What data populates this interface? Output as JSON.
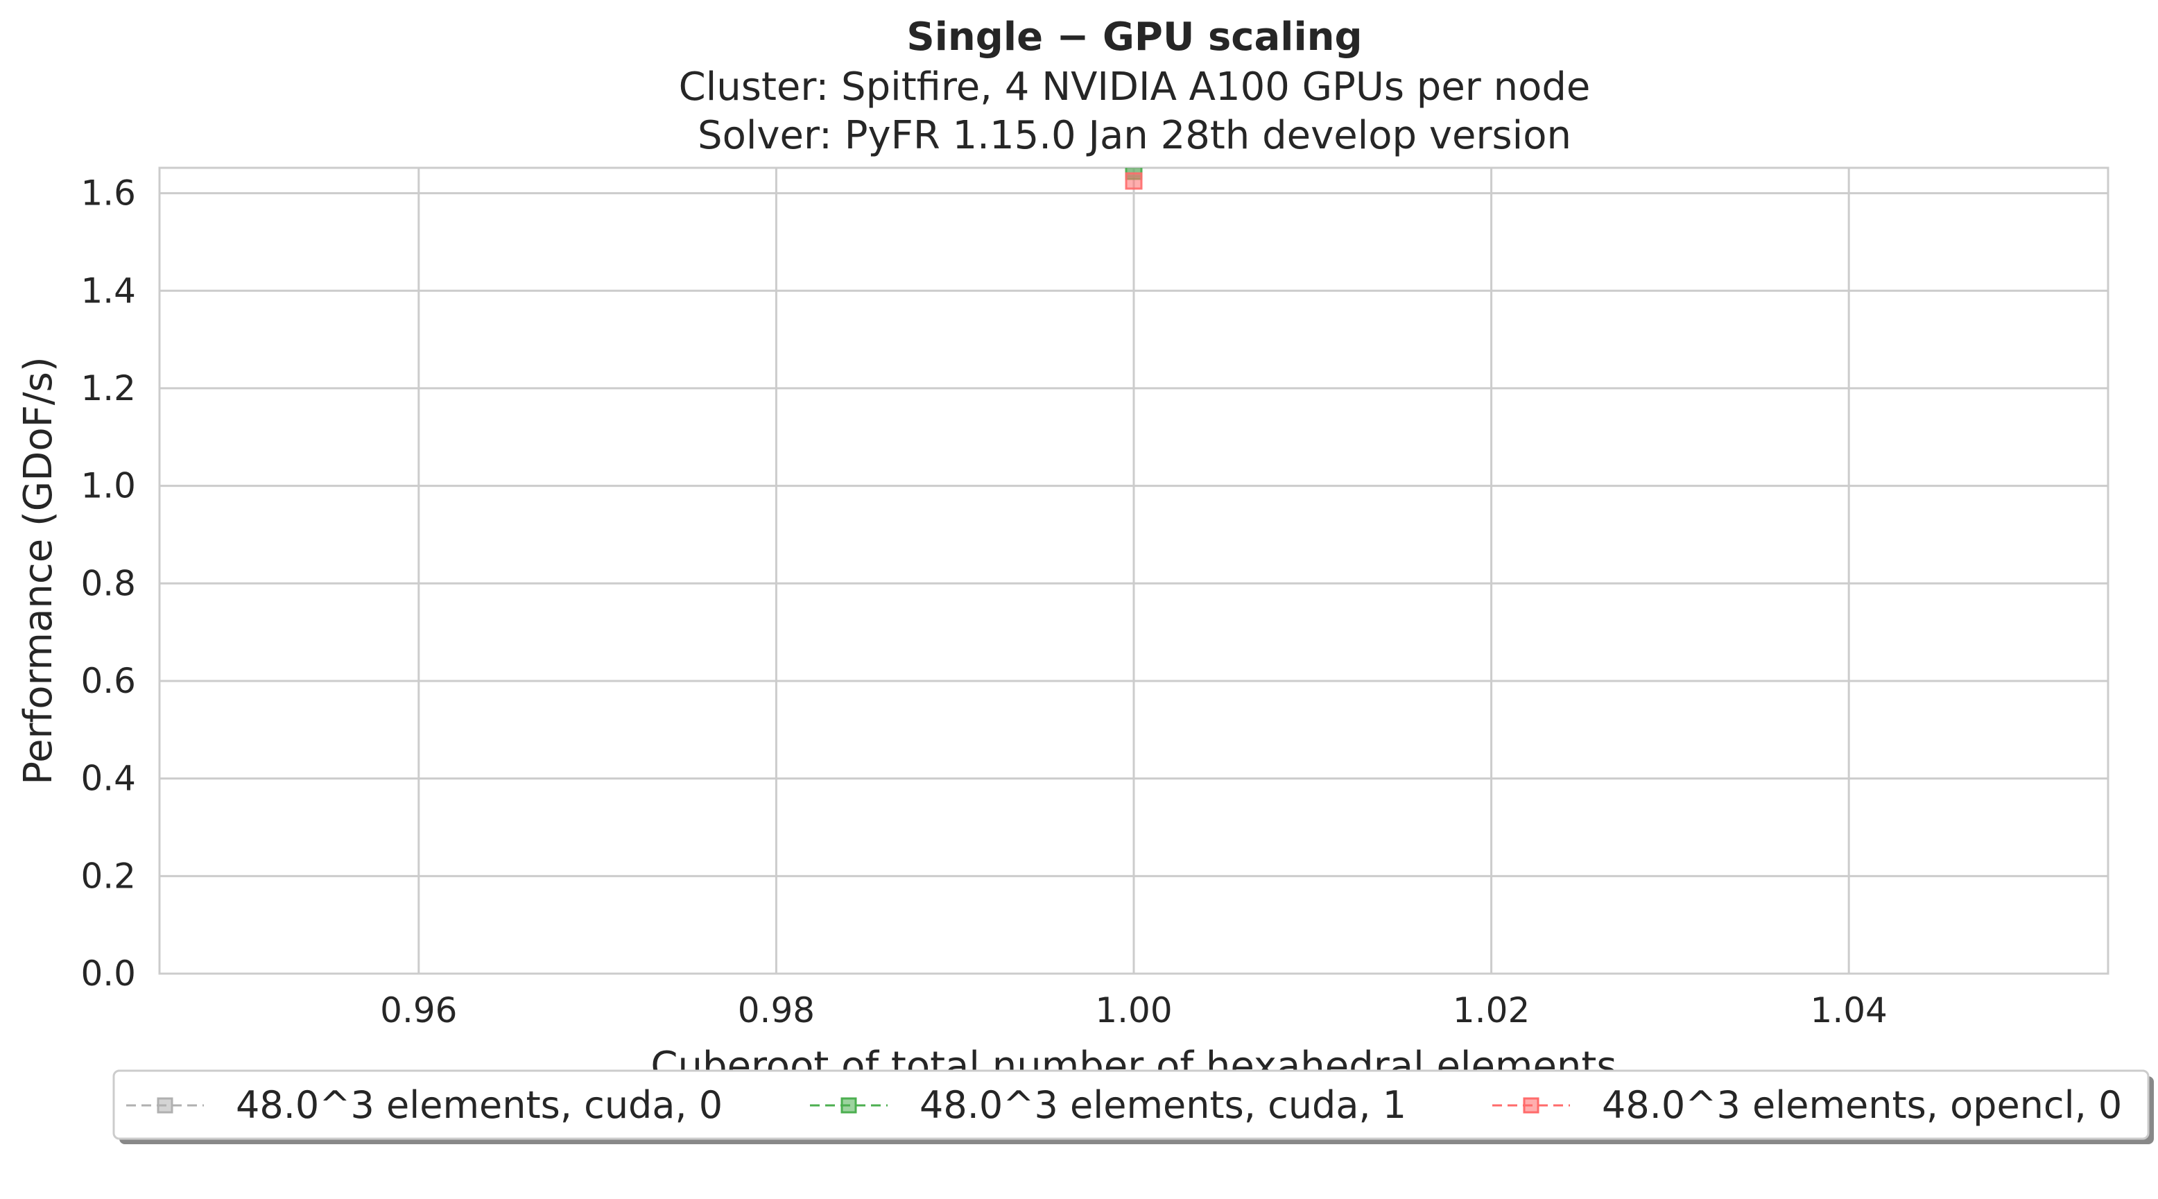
{
  "chart_data": {
    "type": "line",
    "title_bold": "Single − GPU scaling",
    "subtitle_line1": "Cluster: Spitfire, 4 NVIDIA A100 GPUs per node",
    "subtitle_line2": "Solver: PyFR 1.15.0 Jan 28th develop version",
    "xlabel": "Cuberoot of total number of hexahedral elements",
    "ylabel": "Performance (GDoF/s)",
    "xlim": [
      0.9455,
      1.0545
    ],
    "ylim": [
      0.0,
      1.652
    ],
    "xticks": [
      0.96,
      0.98,
      1.0,
      1.02,
      1.04
    ],
    "xtick_labels": [
      "0.96",
      "0.98",
      "1.00",
      "1.02",
      "1.04"
    ],
    "yticks": [
      0.0,
      0.2,
      0.4,
      0.6,
      0.8,
      1.0,
      1.2,
      1.4,
      1.6
    ],
    "ytick_labels": [
      "0.0",
      "0.2",
      "0.4",
      "0.6",
      "0.8",
      "1.0",
      "1.2",
      "1.4",
      "1.6"
    ],
    "grid": true,
    "legend_placement": "bottom-center",
    "series": [
      {
        "name": "48.0^3 elements, cuda, 0",
        "color": "#b0b0b0",
        "x": [
          1.0
        ],
        "y": [
          1.65
        ]
      },
      {
        "name": "48.0^3 elements, cuda, 1",
        "color": "#4caf50",
        "x": [
          1.0
        ],
        "y": [
          1.645
        ]
      },
      {
        "name": "48.0^3 elements, opencl, 0",
        "color": "#ff6b6b",
        "x": [
          1.0
        ],
        "y": [
          1.625
        ]
      }
    ]
  }
}
